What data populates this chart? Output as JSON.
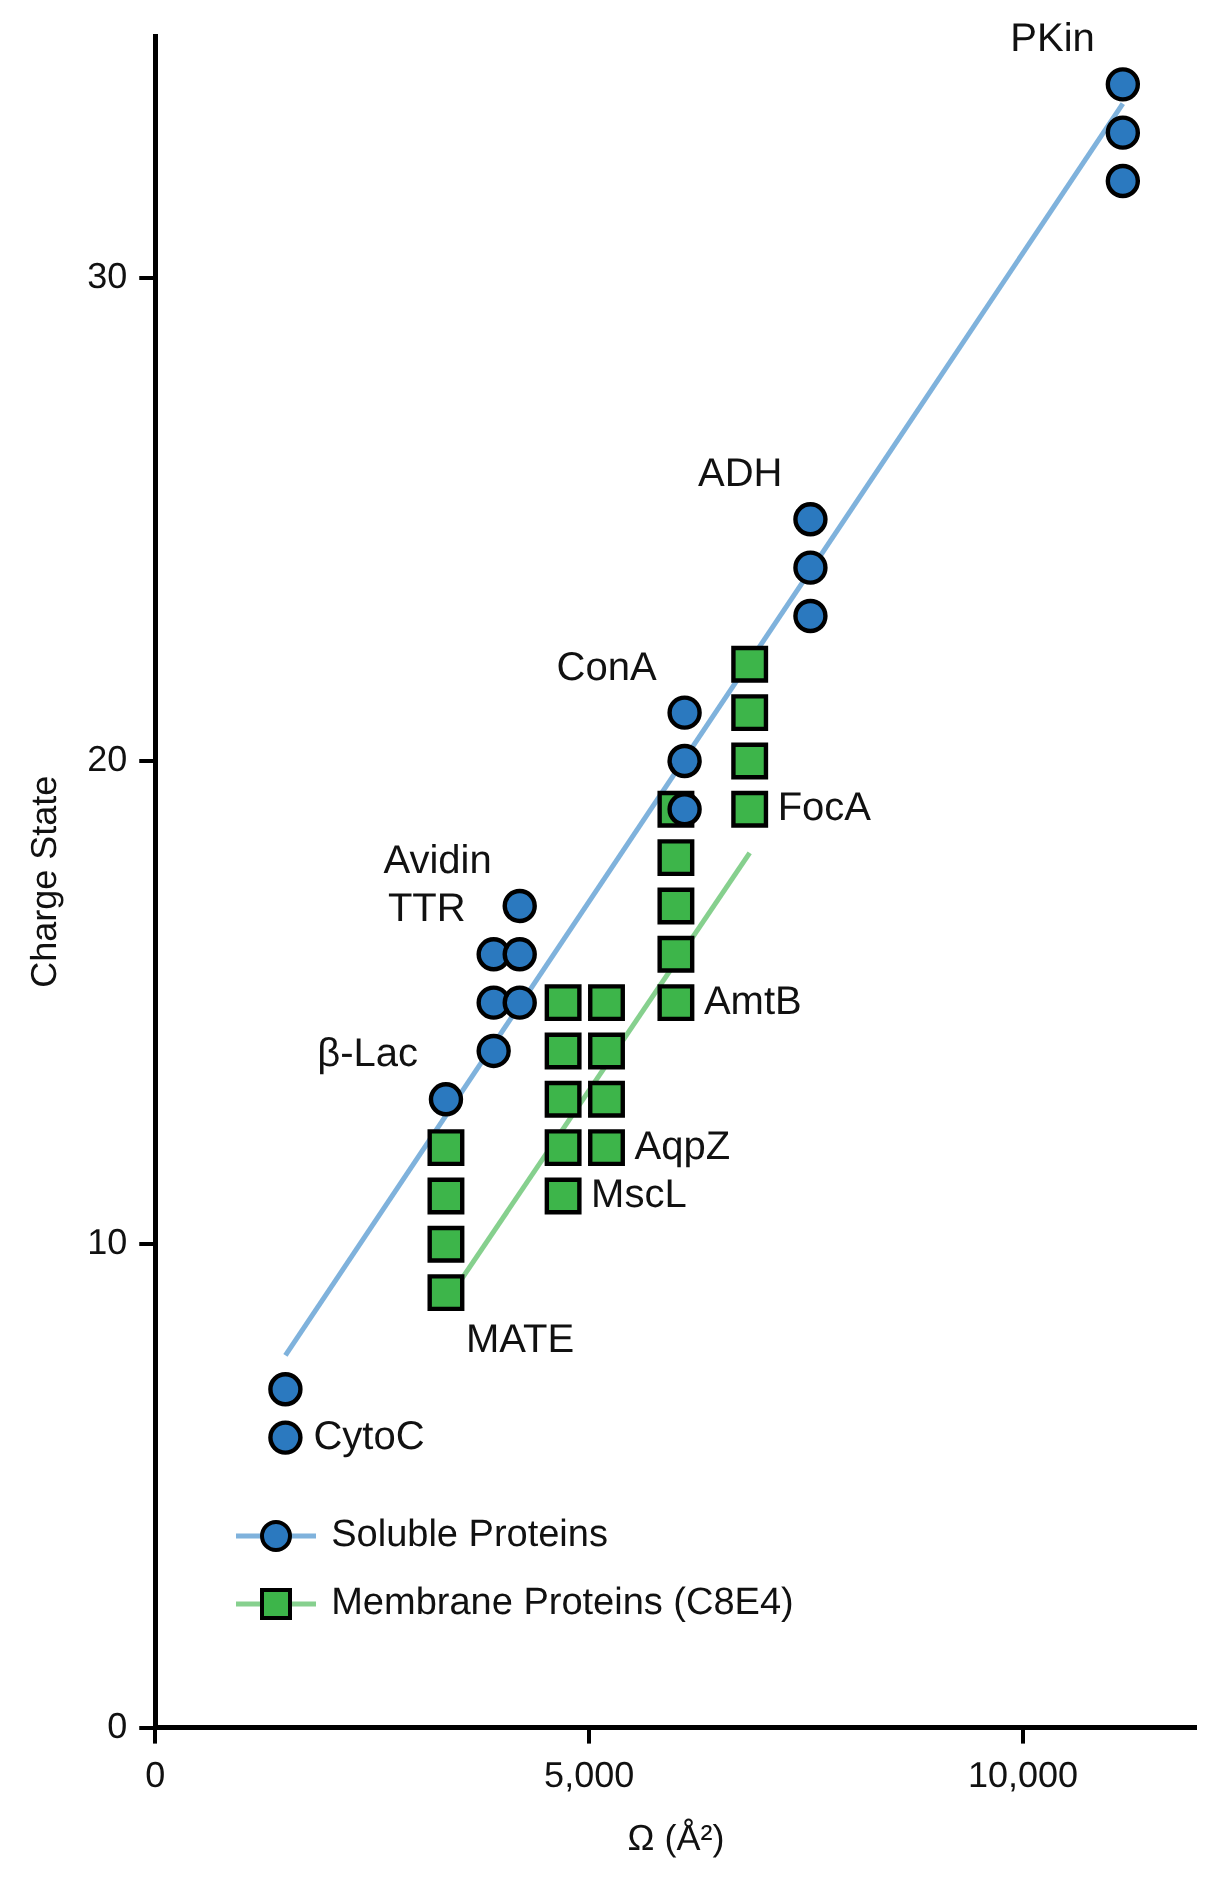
{
  "chart_data": {
    "type": "scatter",
    "xlabel": "Ω (Å²)",
    "ylabel": "Charge State",
    "xlim": [
      0,
      12000
    ],
    "ylim": [
      0,
      35
    ],
    "xticks": [
      0,
      {
        "value": 5000,
        "label": "5,000"
      },
      {
        "value": 10000,
        "label": "10,000"
      }
    ],
    "yticks": [
      0,
      10,
      20,
      30
    ],
    "grid": false,
    "legend": "bottom left",
    "series": [
      {
        "name": "Soluble Proteins",
        "marker": "circle",
        "color": "#2b79bf",
        "x": [
          1500,
          1500,
          3350,
          3900,
          3900,
          3900,
          4200,
          4200,
          4200,
          6100,
          6100,
          6100,
          7550,
          7550,
          7550,
          11150,
          11150,
          11150
        ],
        "values": [
          7,
          6,
          13,
          16,
          15,
          14,
          17,
          16,
          15,
          21,
          20,
          19,
          25,
          24,
          23,
          34,
          33,
          32
        ]
      },
      {
        "name": "Membrane Proteins (C8E4)",
        "marker": "square",
        "color": "#3db54a",
        "x": [
          3350,
          3350,
          3350,
          3350,
          4700,
          4700,
          4700,
          4700,
          4700,
          5200,
          5200,
          5200,
          5200,
          6000,
          6000,
          6000,
          6000,
          6000,
          6850,
          6850,
          6850,
          6850
        ],
        "values": [
          12,
          11,
          10,
          9,
          15,
          14,
          13,
          12,
          11,
          15,
          14,
          13,
          12,
          19,
          18,
          17,
          16,
          15,
          22,
          21,
          20,
          19
        ]
      },
      {
        "type": "line",
        "marker": "none",
        "color": "#7fb2dc",
        "x": [
          1500,
          11150
        ],
        "values": [
          7.7,
          33.6
        ]
      },
      {
        "type": "line",
        "marker": "none",
        "color": "#86d08e",
        "x": [
          3500,
          6850
        ],
        "values": [
          9.2,
          18.1
        ]
      }
    ],
    "annotations": [
      {
        "text": "PKin",
        "x": 11150,
        "y": 34
      },
      {
        "text": "ADH",
        "x": 7550,
        "y": 25
      },
      {
        "text": "ConA",
        "x": 6100,
        "y": 21
      },
      {
        "text": "FocA",
        "x": 6850,
        "y": 19
      },
      {
        "text": "Avidin",
        "x": 4200,
        "y": 17
      },
      {
        "text": "TTR",
        "x": 3900,
        "y": 16
      },
      {
        "text": "AmtB",
        "x": 6000,
        "y": 15
      },
      {
        "text": "β-Lac",
        "x": 3350,
        "y": 13
      },
      {
        "text": "AqpZ",
        "x": 5200,
        "y": 12
      },
      {
        "text": "MscL",
        "x": 4700,
        "y": 11
      },
      {
        "text": "MATE",
        "x": 3350,
        "y": 9
      },
      {
        "text": "CytoC",
        "x": 1500,
        "y": 6
      }
    ]
  }
}
